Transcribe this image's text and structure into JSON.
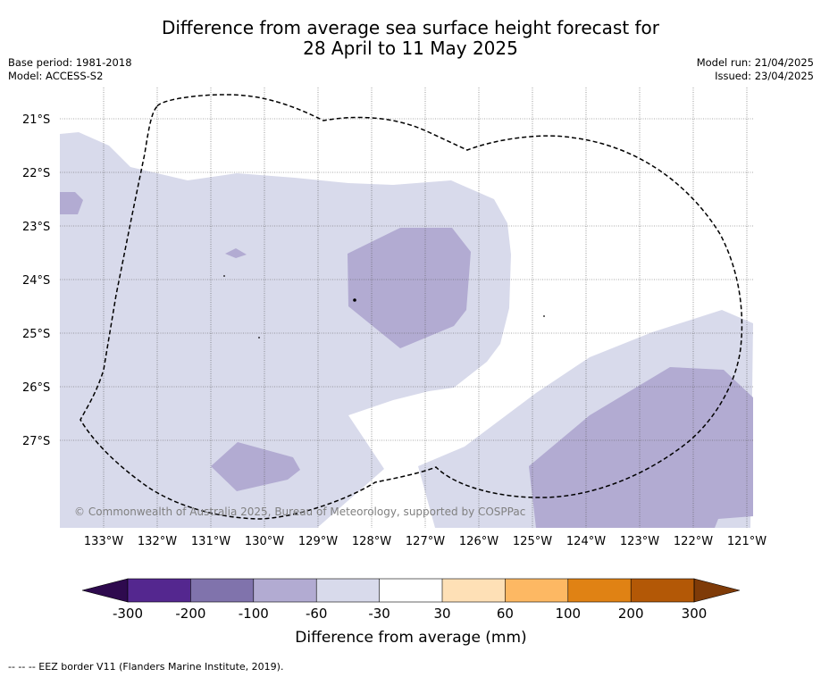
{
  "title_line1": "Difference from average sea surface height forecast for",
  "title_line2": "28 April to 11 May 2025",
  "base_period": "Base period: 1981-2018",
  "model": "Model: ACCESS-S2",
  "model_run": "Model run: 21/04/2025",
  "issued": "Issued: 23/04/2025",
  "copyright": "© Commonwealth of Australia 2025, Bureau of Meteorology, supported by COSPPac",
  "lat_labels": [
    "21°S",
    "22°S",
    "23°S",
    "24°S",
    "25°S",
    "26°S",
    "27°S"
  ],
  "lon_labels": [
    "133°W",
    "132°W",
    "131°W",
    "130°W",
    "129°W",
    "128°W",
    "127°W",
    "126°W",
    "125°W",
    "124°W",
    "123°W",
    "122°W",
    "121°W"
  ],
  "colorbar": {
    "label": "Difference from average (mm)",
    "ticks": [
      "-300",
      "-200",
      "-100",
      "-60",
      "-30",
      "30",
      "60",
      "100",
      "200",
      "300"
    ],
    "colors": [
      "#2e0a4e",
      "#54278f",
      "#8073ac",
      "#b2abd2",
      "#d8daeb",
      "#ffffff",
      "#fee0b6",
      "#fdb863",
      "#e08214",
      "#b35806",
      "#7f3b08"
    ]
  },
  "footnote": "--  --  -- EEZ border V11 (Flanders Marine Institute, 2019)."
}
